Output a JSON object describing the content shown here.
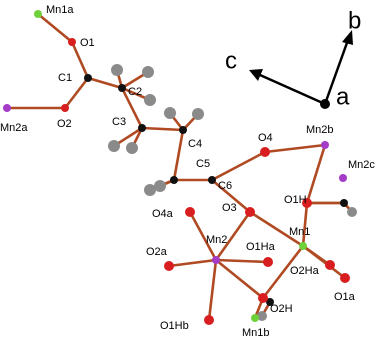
{
  "atoms": [
    {
      "label": "Mn1a"
    },
    {
      "label": "O1"
    },
    {
      "label": "C1"
    },
    {
      "label": "O2"
    },
    {
      "label": "Mn2a"
    },
    {
      "label": "C2"
    },
    {
      "label": "C3"
    },
    {
      "label": "C4"
    },
    {
      "label": "C5"
    },
    {
      "label": "C6"
    },
    {
      "label": "O4"
    },
    {
      "label": "Mn2b"
    },
    {
      "label": "Mn2c"
    },
    {
      "label": "O1H"
    },
    {
      "label": "O3"
    },
    {
      "label": "Mn1"
    },
    {
      "label": "Mn2"
    },
    {
      "label": "O4a"
    },
    {
      "label": "O2a"
    },
    {
      "label": "O1Ha"
    },
    {
      "label": "O2Ha"
    },
    {
      "label": "O1a"
    },
    {
      "label": "O2H"
    },
    {
      "label": "O1Hb"
    },
    {
      "label": "Mn1b"
    }
  ],
  "axes": {
    "a": "a",
    "b": "b",
    "c": "c"
  }
}
